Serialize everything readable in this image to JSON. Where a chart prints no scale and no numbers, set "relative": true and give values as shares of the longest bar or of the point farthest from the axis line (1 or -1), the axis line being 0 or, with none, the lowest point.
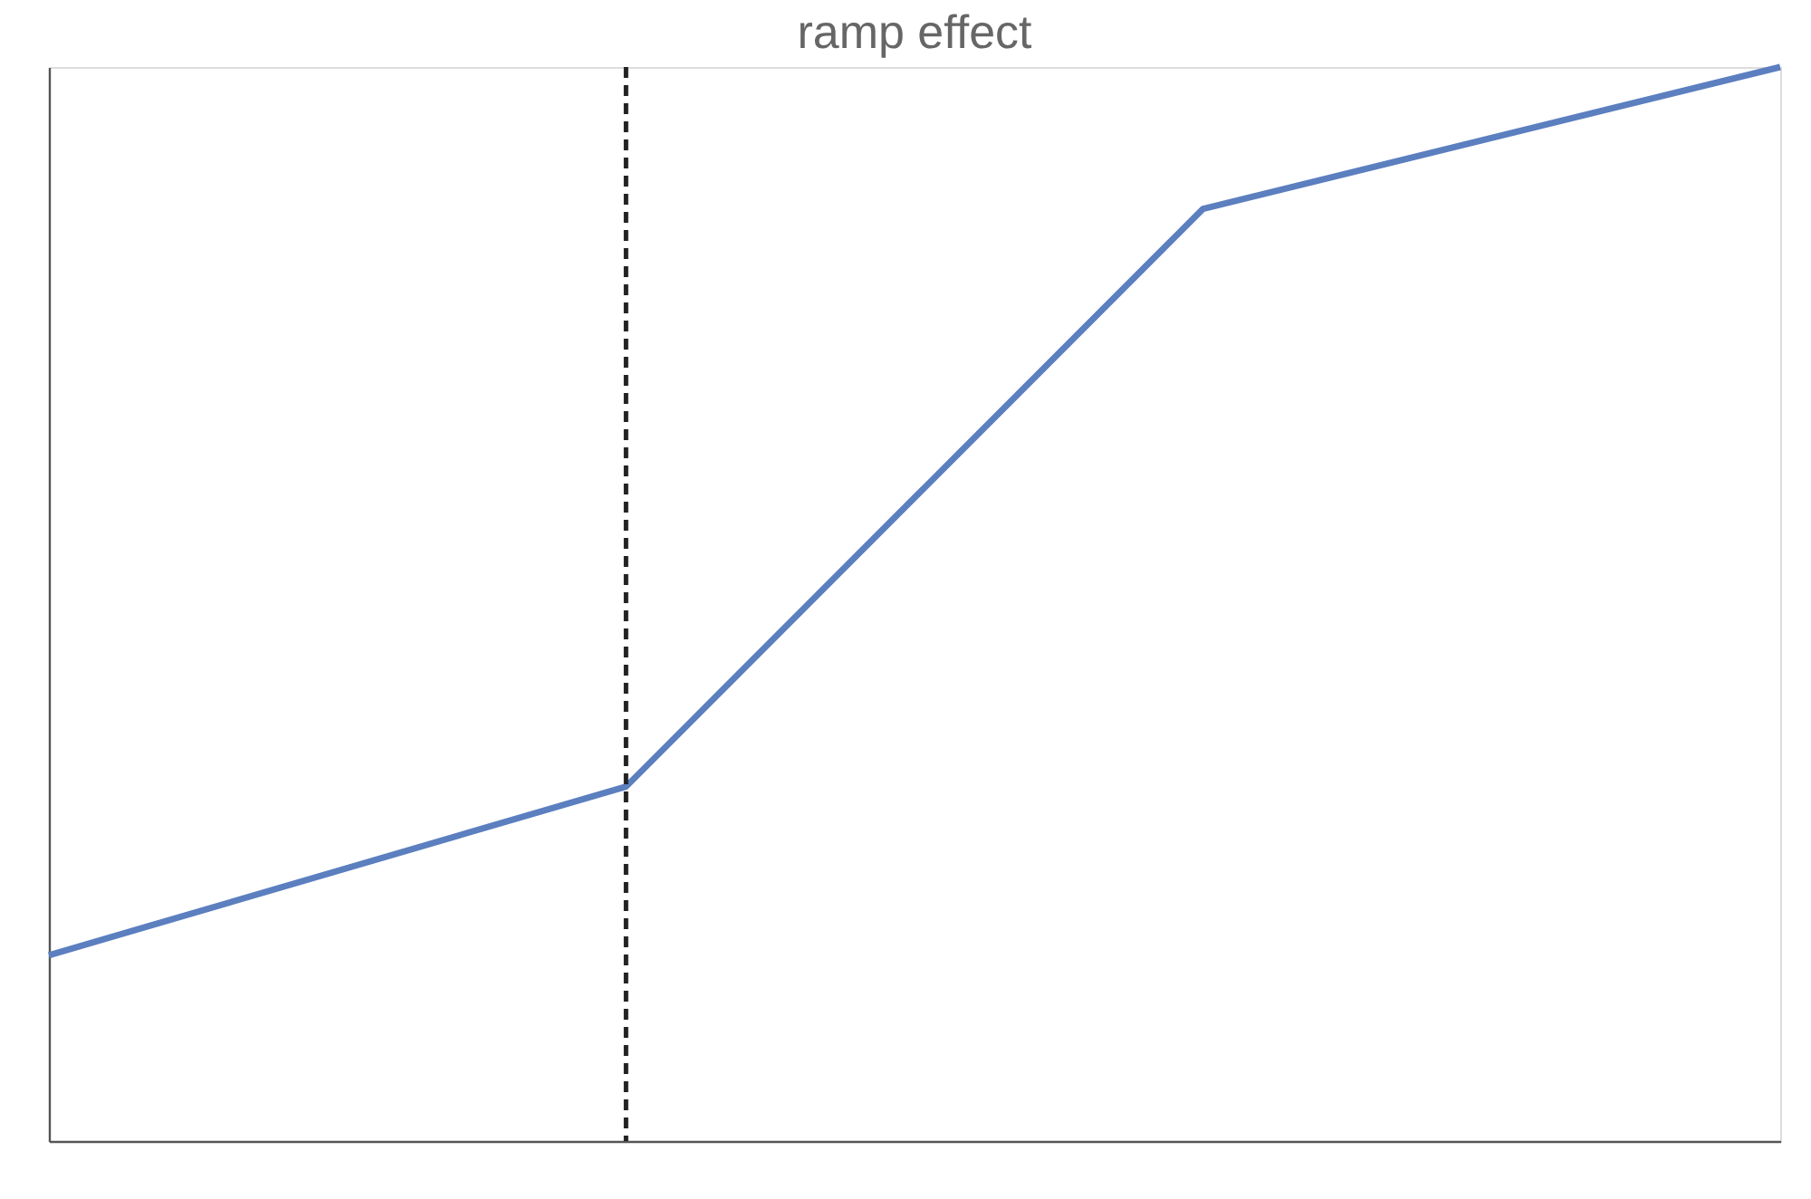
{
  "chart_data": {
    "type": "line",
    "title": "ramp effect",
    "relative": true,
    "tick_labels": false,
    "grid": false,
    "marker": "none",
    "line_style": "solid",
    "categories": [
      null,
      null,
      null,
      null
    ],
    "series": [
      {
        "color": "#5b7fbf",
        "values": [
          0.173,
          0.33,
          0.868,
          1.0
        ]
      }
    ]
  }
}
